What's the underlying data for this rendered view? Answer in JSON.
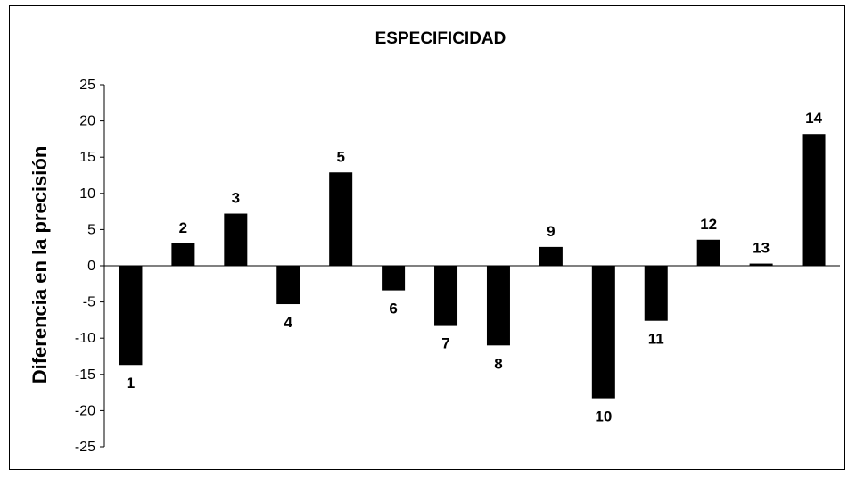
{
  "chart_data": {
    "type": "bar",
    "title": "ESPECIFICIDAD",
    "xlabel": "",
    "ylabel": "Diferencia en la precisión",
    "categories": [
      "1",
      "2",
      "3",
      "4",
      "5",
      "6",
      "7",
      "8",
      "9",
      "10",
      "11",
      "12",
      "13",
      "14"
    ],
    "values": [
      -13.7,
      3.1,
      7.2,
      -5.3,
      12.9,
      -3.4,
      -8.2,
      -11.0,
      2.6,
      -18.3,
      -7.6,
      3.6,
      0.3,
      18.2
    ],
    "ylim": [
      -25,
      25
    ],
    "yticks": [
      "25",
      "20",
      "15",
      "10",
      "5",
      "0",
      "-5",
      "-10",
      "-15",
      "-20",
      "-25"
    ],
    "bar_color": "#000000",
    "grid": false,
    "legend": "none"
  }
}
